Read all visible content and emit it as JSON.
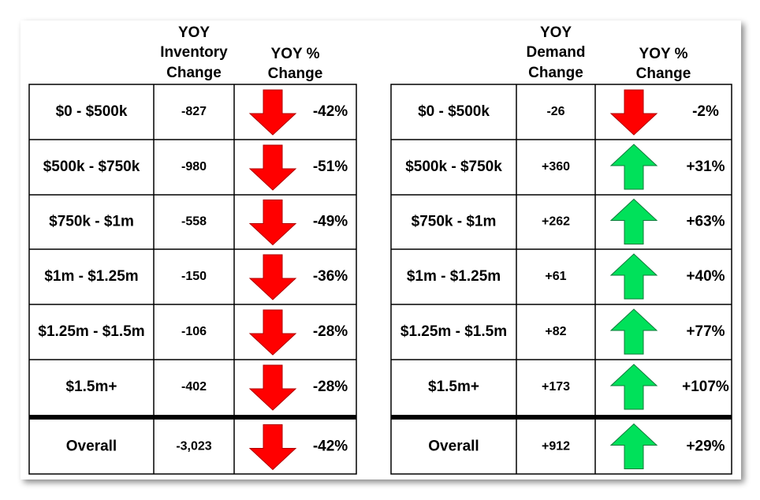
{
  "tables": [
    {
      "headers": [
        [
          "YOY",
          "Inventory",
          "Change"
        ],
        [
          "YOY %",
          "Change"
        ]
      ],
      "rows": [
        [
          "$0 - $500k",
          "-827",
          "-42%"
        ],
        [
          "$500k - $750k",
          "-980",
          "-51%"
        ],
        [
          "$750k - $1m",
          "-558",
          "-49%"
        ],
        [
          "$1m - $1.25m",
          "-150",
          "-36%"
        ],
        [
          "$1.25m - $1.5m",
          "-106",
          "-28%"
        ],
        [
          "$1.5m+",
          "-402",
          "-28%"
        ]
      ],
      "total": [
        "Overall",
        "-3,023",
        "-42%"
      ]
    },
    {
      "headers": [
        [
          "YOY",
          "Demand",
          "Change"
        ],
        [
          "YOY %",
          "Change"
        ]
      ],
      "rows": [
        [
          "$0 - $500k",
          "-26",
          "-2%"
        ],
        [
          "$500k - $750k",
          "+360",
          "+31%"
        ],
        [
          "$750k - $1m",
          "+262",
          "+63%"
        ],
        [
          "$1m - $1.25m",
          "+61",
          "+40%"
        ],
        [
          "$1.25m - $1.5m",
          "+82",
          "+77%"
        ],
        [
          "$1.5m+",
          "+173",
          "+107%"
        ]
      ],
      "total": [
        "Overall",
        "+912",
        "+29%"
      ]
    }
  ]
}
